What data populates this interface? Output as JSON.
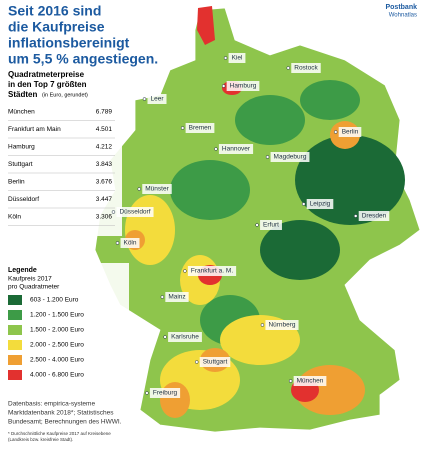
{
  "header": {
    "title_lines": [
      "Seit 2016 sind",
      "die Kaufpreise",
      "inflationsbereinigt",
      "um 5,5 % angestiegen."
    ],
    "brand": "Postbank",
    "brand_sub": "Wohnatlas"
  },
  "table": {
    "title_lines": [
      "Quadratmeterpreise",
      "in den Top 7 größten"
    ],
    "title_last": "Städten",
    "note": "(in Euro, gerundet)",
    "rows": [
      [
        "München",
        "6.789"
      ],
      [
        "Frankfurt am Main",
        "4.501"
      ],
      [
        "Hamburg",
        "4.212"
      ],
      [
        "Stuttgart",
        "3.843"
      ],
      [
        "Berlin",
        "3.676"
      ],
      [
        "Düsseldorf",
        "3.447"
      ],
      [
        "Köln",
        "3.306"
      ]
    ]
  },
  "legend": {
    "title": "Legende",
    "subtitle_lines": [
      "Kaufpreis 2017",
      "pro Quadratmeter"
    ],
    "items": [
      {
        "label": "603 - 1.200 Euro",
        "color": "#1b6a36"
      },
      {
        "label": "1.200 - 1.500 Euro",
        "color": "#3d9b47"
      },
      {
        "label": "1.500 - 2.000 Euro",
        "color": "#8ec54c"
      },
      {
        "label": "2.000 - 2.500 Euro",
        "color": "#f3dc3c"
      },
      {
        "label": "2.500 - 4.000 Euro",
        "color": "#ef9f33"
      },
      {
        "label": "4.000 - 6.800 Euro",
        "color": "#e2312f"
      }
    ]
  },
  "source_lines": [
    "Datenbasis: empirica-systeme",
    "Marktdatenbank 2018*; Statistisches",
    "Bundesamt; Berechnungen des HWWI."
  ],
  "footnote_lines": [
    "* Durchschnittliche Kaufpreise 2017 auf Kreisebene",
    "(Landkreis bzw. kreisfreie Stadt)."
  ],
  "cities": [
    "Kiel",
    "Rostock",
    "Hamburg",
    "Leer",
    "Bremen",
    "Berlin",
    "Hannover",
    "Magdeburg",
    "Münster",
    "Leipzig",
    "Dresden",
    "Düsseldorf",
    "Erfurt",
    "Köln",
    "Frankfurt a. M.",
    "Mainz",
    "Nürnberg",
    "Karlsruhe",
    "Stuttgart",
    "München",
    "Freiburg"
  ]
}
